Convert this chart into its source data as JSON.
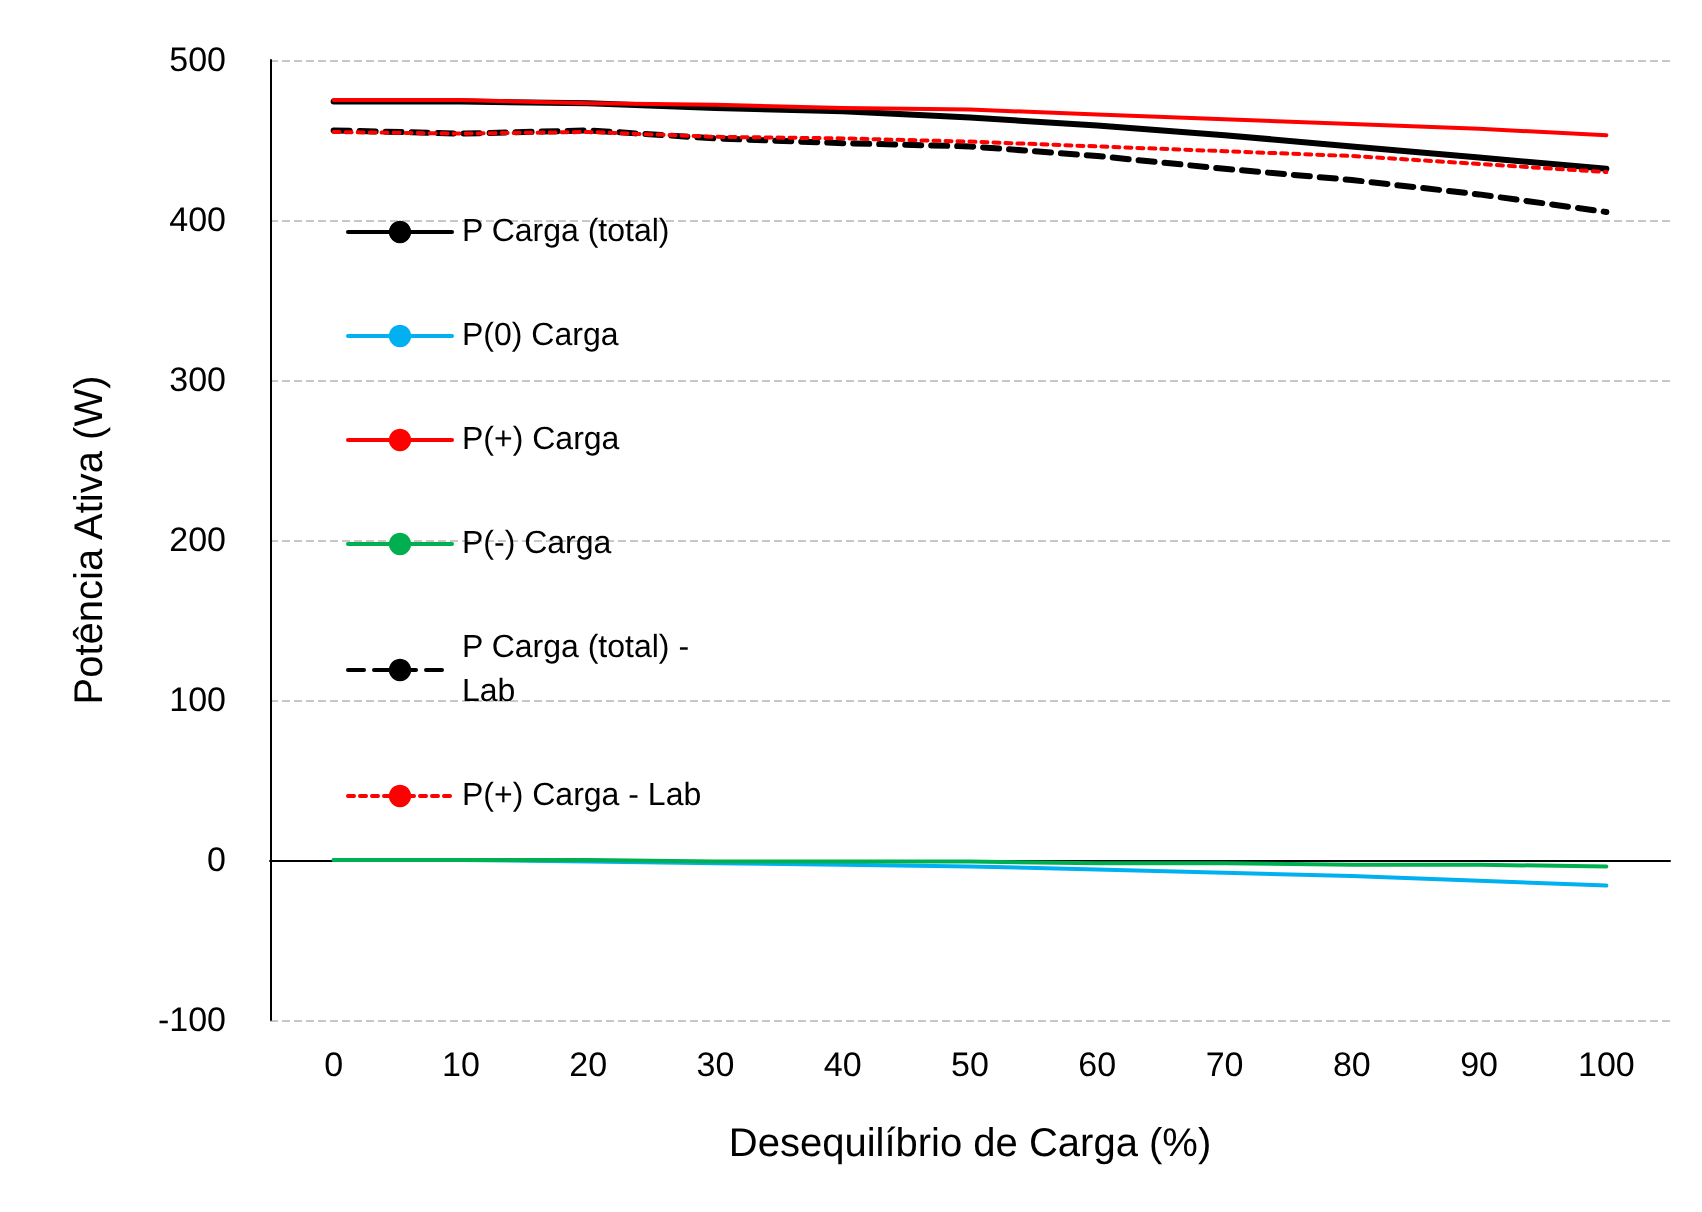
{
  "chart_data": {
    "type": "line",
    "xlabel": "Desequilíbrio de Carga (%)",
    "ylabel": "Potência Ativa (W)",
    "x": [
      0,
      10,
      20,
      30,
      40,
      50,
      60,
      70,
      80,
      90,
      100
    ],
    "xlim": [
      -5,
      105
    ],
    "xticks": [
      0,
      10,
      20,
      30,
      40,
      50,
      60,
      70,
      80,
      90,
      100
    ],
    "ylim": [
      -100,
      500
    ],
    "yticks": [
      -100,
      0,
      100,
      200,
      300,
      400,
      500
    ],
    "grid": "y",
    "legend": "left",
    "marker": "none",
    "series": [
      {
        "name": "P Carga (total)",
        "color": "#000000",
        "line_style": "solid",
        "values": [
          474,
          474,
          473,
          470,
          468,
          464,
          459,
          453,
          446,
          439,
          432
        ]
      },
      {
        "name": "P(0) Carga",
        "color": "#00b0f0",
        "line_style": "solid",
        "values": [
          0,
          0,
          -1,
          -2,
          -3,
          -4,
          -6,
          -8,
          -10,
          -13,
          -16
        ]
      },
      {
        "name": "P(+) Carga",
        "color": "#ff0000",
        "line_style": "solid",
        "values": [
          475,
          475,
          473,
          472,
          470,
          469,
          466,
          463,
          460,
          457,
          453
        ]
      },
      {
        "name": "P(-) Carga",
        "color": "#00b050",
        "line_style": "solid",
        "values": [
          0,
          0,
          0,
          -1,
          -1,
          -1,
          -2,
          -2,
          -3,
          -3,
          -4
        ]
      },
      {
        "name": "P Carga (total) - Lab",
        "color": "#000000",
        "line_style": "dashed",
        "values": [
          456,
          454,
          456,
          451,
          448,
          446,
          440,
          432,
          425,
          416,
          405
        ]
      },
      {
        "name": "P(+) Carga - Lab",
        "color": "#ff0000",
        "line_style": "dotted",
        "values": [
          455,
          454,
          455,
          452,
          451,
          449,
          446,
          443,
          440,
          435,
          430
        ]
      }
    ]
  }
}
